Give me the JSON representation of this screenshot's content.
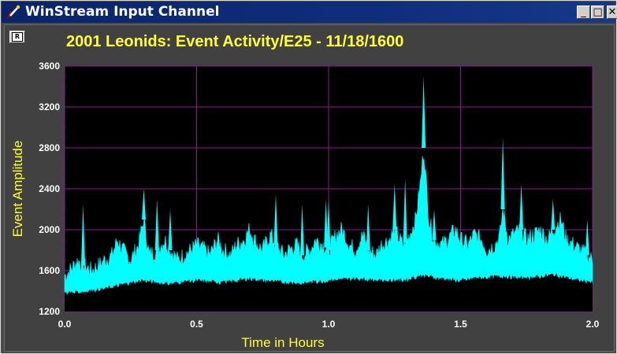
{
  "window": {
    "title": "WinStream Input Channel",
    "minimize_label": "_",
    "maximize_label": "□",
    "close_label": "✕"
  },
  "toolbar": {
    "icon": "chart-tool-icon",
    "glyph": "R"
  },
  "colors": {
    "accent_text": "#ffff33",
    "grid": "#8b1a8b",
    "series_envelope": "#00ffff",
    "plot_bg": "#000000",
    "panel_bg": "#414141"
  },
  "chart_data": {
    "type": "area",
    "title": "2001 Leonids: Event Activity/E25 - 11/18/1600",
    "xlabel": "Time in Hours",
    "ylabel": "Event Amplitude",
    "xlim": [
      0.0,
      2.0
    ],
    "ylim": [
      1200,
      3600
    ],
    "x_ticks": [
      "0.0",
      "0.5",
      "1.0",
      "1.5",
      "2.0"
    ],
    "y_ticks": [
      "1200",
      "1600",
      "2000",
      "2400",
      "2800",
      "3200",
      "3600"
    ],
    "grid": true,
    "series": [
      {
        "name": "",
        "x": [
          0.0,
          0.02,
          0.05,
          0.07,
          0.1,
          0.13,
          0.15,
          0.18,
          0.2,
          0.22,
          0.25,
          0.28,
          0.3,
          0.32,
          0.35,
          0.38,
          0.4,
          0.43,
          0.45,
          0.48,
          0.5,
          0.53,
          0.55,
          0.58,
          0.6,
          0.63,
          0.65,
          0.68,
          0.7,
          0.73,
          0.75,
          0.78,
          0.8,
          0.83,
          0.85,
          0.88,
          0.9,
          0.93,
          0.95,
          0.98,
          1.0,
          1.03,
          1.05,
          1.08,
          1.1,
          1.13,
          1.15,
          1.18,
          1.2,
          1.23,
          1.25,
          1.28,
          1.3,
          1.33,
          1.35,
          1.36,
          1.38,
          1.4,
          1.43,
          1.45,
          1.48,
          1.5,
          1.53,
          1.55,
          1.58,
          1.6,
          1.63,
          1.65,
          1.66,
          1.68,
          1.7,
          1.73,
          1.75,
          1.78,
          1.8,
          1.83,
          1.85,
          1.88,
          1.9,
          1.93,
          1.95,
          1.98,
          2.0
        ],
        "y": [
          1550,
          1600,
          1700,
          1650,
          1600,
          1650,
          1700,
          1750,
          1900,
          1800,
          1700,
          1850,
          2100,
          1750,
          1800,
          1900,
          1800,
          1700,
          1750,
          1800,
          1850,
          1800,
          1750,
          1900,
          1800,
          1750,
          1850,
          1900,
          2000,
          1850,
          1800,
          1950,
          1850,
          1750,
          1800,
          1850,
          1750,
          1800,
          1900,
          1850,
          1800,
          1950,
          2000,
          1850,
          1800,
          1950,
          1800,
          1750,
          1850,
          1900,
          2000,
          1850,
          1900,
          2100,
          2500,
          2800,
          2100,
          1900,
          1850,
          1900,
          2000,
          1900,
          1850,
          1950,
          1900,
          1800,
          1850,
          1950,
          2200,
          1900,
          1950,
          2000,
          1900,
          1950,
          2000,
          1900,
          2000,
          2100,
          1900,
          1850,
          1800,
          1750,
          1700
        ]
      },
      {
        "name": "",
        "x": [
          0.0,
          0.05,
          0.1,
          0.15,
          0.2,
          0.25,
          0.3,
          0.35,
          0.4,
          0.45,
          0.5,
          0.55,
          0.6,
          0.65,
          0.7,
          0.75,
          0.8,
          0.85,
          0.9,
          0.95,
          1.0,
          1.05,
          1.1,
          1.15,
          1.2,
          1.25,
          1.3,
          1.35,
          1.4,
          1.45,
          1.5,
          1.55,
          1.6,
          1.65,
          1.7,
          1.75,
          1.8,
          1.85,
          1.9,
          1.95,
          2.0
        ],
        "y": [
          1380,
          1390,
          1400,
          1420,
          1450,
          1480,
          1500,
          1480,
          1470,
          1490,
          1500,
          1490,
          1480,
          1500,
          1520,
          1500,
          1490,
          1480,
          1470,
          1490,
          1500,
          1510,
          1520,
          1510,
          1500,
          1500,
          1510,
          1550,
          1530,
          1510,
          1500,
          1520,
          1530,
          1540,
          1530,
          1520,
          1540,
          1560,
          1530,
          1500,
          1480
        ]
      }
    ],
    "peaks": [
      {
        "x": 0.07,
        "y": 2250
      },
      {
        "x": 0.3,
        "y": 2400
      },
      {
        "x": 0.35,
        "y": 2300
      },
      {
        "x": 0.4,
        "y": 2200
      },
      {
        "x": 0.8,
        "y": 2350
      },
      {
        "x": 0.9,
        "y": 2250
      },
      {
        "x": 0.99,
        "y": 2300
      },
      {
        "x": 1.0,
        "y": 2300
      },
      {
        "x": 1.15,
        "y": 2250
      },
      {
        "x": 1.25,
        "y": 2450
      },
      {
        "x": 1.29,
        "y": 2500
      },
      {
        "x": 1.36,
        "y": 3500
      },
      {
        "x": 1.4,
        "y": 2200
      },
      {
        "x": 1.66,
        "y": 2900
      },
      {
        "x": 1.73,
        "y": 2450
      },
      {
        "x": 1.85,
        "y": 2300
      },
      {
        "x": 1.98,
        "y": 2100
      }
    ]
  }
}
